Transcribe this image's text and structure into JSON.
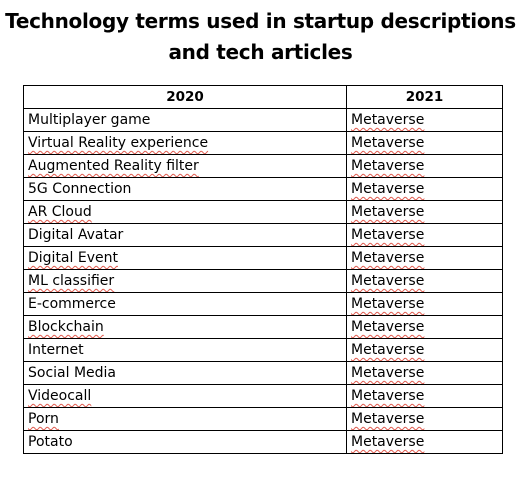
{
  "title": {
    "line1": "Technology terms used in startup descriptions",
    "line2": "and tech articles"
  },
  "table": {
    "headers": [
      "2020",
      "2021"
    ],
    "rows": [
      {
        "c2020": "Multiplayer game",
        "c2021": "Metaverse"
      },
      {
        "c2020": "Virtual Reality experience",
        "c2021": "Metaverse"
      },
      {
        "c2020": "Augmented Reality filter",
        "c2021": "Metaverse"
      },
      {
        "c2020": "5G Connection",
        "c2021": "Metaverse"
      },
      {
        "c2020": "AR Cloud",
        "c2021": "Metaverse"
      },
      {
        "c2020": "Digital Avatar",
        "c2021": "Metaverse"
      },
      {
        "c2020": "Digital Event",
        "c2021": "Metaverse"
      },
      {
        "c2020": "ML classifier",
        "c2021": "Metaverse"
      },
      {
        "c2020": "E-commerce",
        "c2021": "Metaverse"
      },
      {
        "c2020": "Blockchain",
        "c2021": "Metaverse"
      },
      {
        "c2020": "Internet",
        "c2021": "Metaverse"
      },
      {
        "c2020": "Social Media",
        "c2021": "Metaverse"
      },
      {
        "c2020": "Videocall",
        "c2021": "Metaverse"
      },
      {
        "c2020": "Porn",
        "c2021": "Metaverse"
      },
      {
        "c2020": "Potato",
        "c2021": "Metaverse"
      }
    ]
  },
  "colors": {
    "spellcheck_underline": "#e05a4e",
    "text": "#000000",
    "border": "#000000"
  }
}
